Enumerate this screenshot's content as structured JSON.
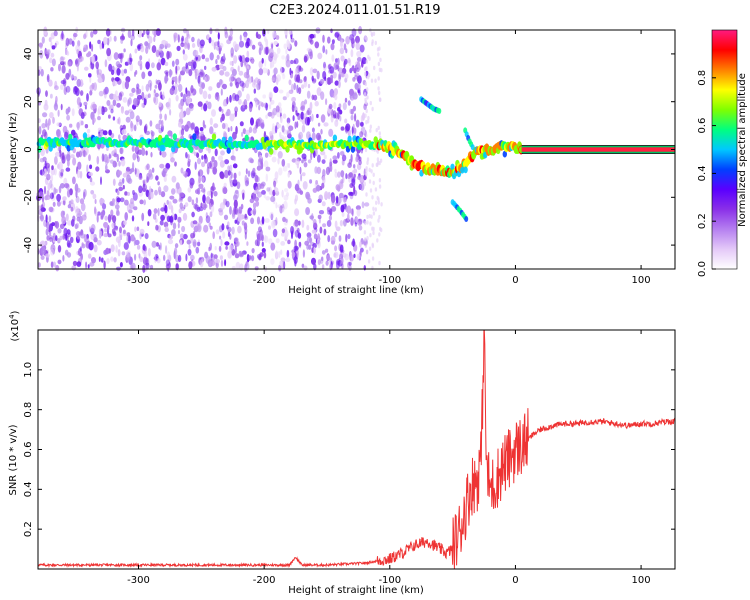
{
  "title": "C2E3.2024.011.01.51.R19",
  "chart_data": [
    {
      "type": "heatmap",
      "xlabel": "Height of straight line (km)",
      "ylabel": "Frequency (Hz)",
      "xlim": [
        -380,
        127
      ],
      "ylim": [
        -50,
        50
      ],
      "xticks": [
        -300,
        -200,
        -100,
        0,
        100
      ],
      "yticks": [
        -40,
        -20,
        0,
        20,
        40
      ],
      "colorbar": {
        "label": "Normalized spectral amplitude",
        "range": [
          0.0,
          1.0
        ],
        "ticks": [
          0.0,
          0.2,
          0.4,
          0.6,
          0.8
        ],
        "colors": [
          "#ffffff",
          "#e4c9f8",
          "#b57ff0",
          "#8a30e8",
          "#5a00ff",
          "#0040ff",
          "#00c8ff",
          "#00ff80",
          "#80ff00",
          "#ffff00",
          "#ff8000",
          "#ff0000",
          "#ff1a80"
        ]
      },
      "signal_track": {
        "x": [
          -380,
          -300,
          -200,
          -150,
          -120,
          -100,
          -90,
          -80,
          -70,
          -60,
          -50,
          -40,
          -35,
          -30,
          -20,
          -10,
          0,
          5,
          127
        ],
        "y": [
          3,
          3,
          2,
          2,
          2,
          1,
          -2,
          -6,
          -8,
          -9,
          -10,
          -6,
          -3,
          -1,
          0,
          1,
          1,
          0,
          0
        ]
      },
      "side_features": [
        {
          "x": [
            -75,
            -70,
            -65,
            -60
          ],
          "y": [
            21,
            19,
            17,
            16
          ]
        },
        {
          "x": [
            -50,
            -45,
            -42,
            -38
          ],
          "y": [
            -22,
            -25,
            -27,
            -30
          ]
        },
        {
          "x": [
            -40,
            -37,
            -33
          ],
          "y": [
            8,
            4,
            0
          ]
        }
      ]
    },
    {
      "type": "line",
      "xlabel": "Height of straight line (km)",
      "ylabel": "SNR (10 * v/v)",
      "yunit_label": "(x10",
      "yunit_exp": "4",
      "xlim": [
        -380,
        127
      ],
      "ylim": [
        0,
        1.2
      ],
      "xticks": [
        -300,
        -200,
        -100,
        0,
        100
      ],
      "yticks": [
        0.2,
        0.4,
        0.6,
        0.8,
        1.0
      ],
      "ytick_labels": [
        "0.2",
        "0.4",
        "0.6",
        "0.8",
        "1.0"
      ],
      "series": [
        {
          "color": "#ee3333",
          "x": [
            -380,
            -340,
            -300,
            -250,
            -200,
            -180,
            -175,
            -170,
            -150,
            -120,
            -100,
            -90,
            -80,
            -70,
            -60,
            -55,
            -50,
            -45,
            -40,
            -35,
            -30,
            -27,
            -25,
            -23,
            -20,
            -15,
            -10,
            -5,
            0,
            5,
            10,
            15,
            20,
            25,
            30,
            40,
            50,
            60,
            70,
            80,
            90,
            100,
            110,
            120,
            127
          ],
          "y": [
            0.02,
            0.02,
            0.02,
            0.02,
            0.02,
            0.02,
            0.06,
            0.02,
            0.02,
            0.03,
            0.05,
            0.08,
            0.12,
            0.14,
            0.1,
            0.08,
            0.1,
            0.18,
            0.3,
            0.42,
            0.45,
            0.6,
            1.2,
            0.5,
            0.4,
            0.45,
            0.52,
            0.55,
            0.6,
            0.62,
            0.65,
            0.68,
            0.7,
            0.71,
            0.72,
            0.73,
            0.73,
            0.74,
            0.74,
            0.73,
            0.72,
            0.73,
            0.73,
            0.74,
            0.74
          ]
        }
      ]
    }
  ]
}
